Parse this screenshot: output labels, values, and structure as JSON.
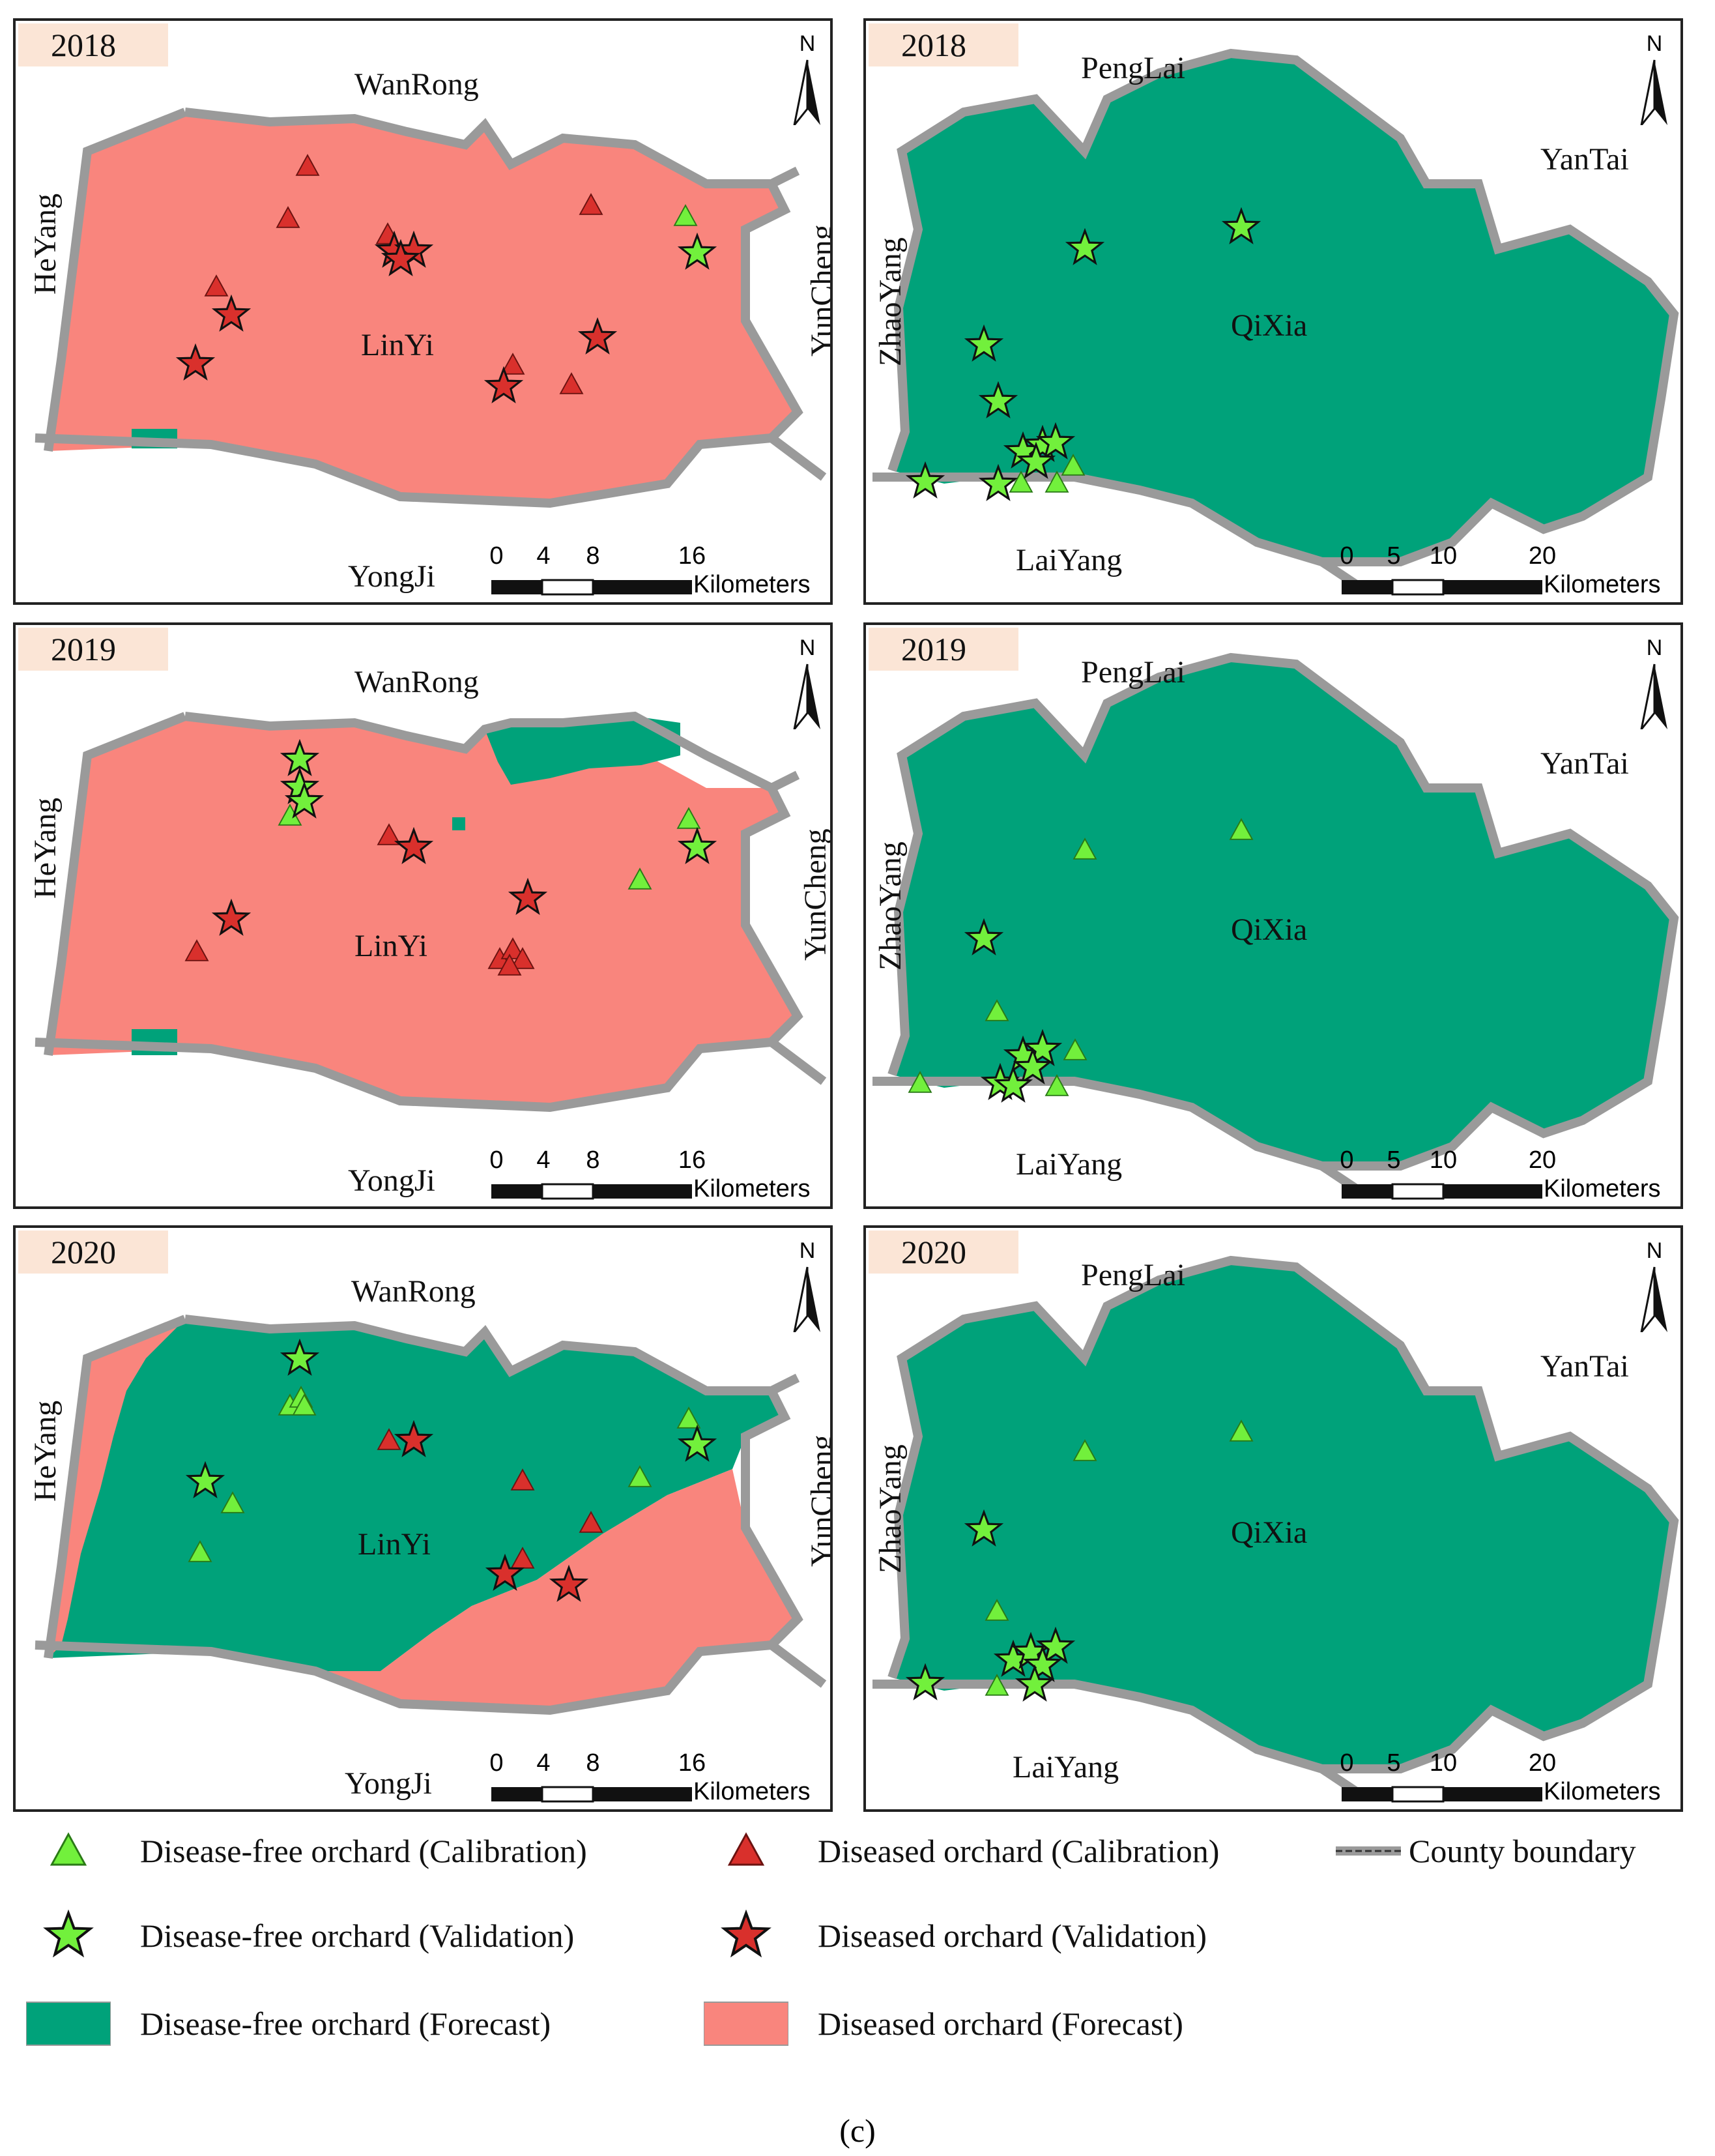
{
  "figure": {
    "caption": "(c)"
  },
  "colors": {
    "forecast_free": "#00a27a",
    "forecast_diseased": "#f9857d",
    "point_free": "#72f03c",
    "point_diseased": "#d9302c",
    "boundary": "#9a9a9a",
    "year_tag_bg": "#fbe5d6"
  },
  "linyi_labels": {
    "county": "LinYi",
    "north": "WanRong",
    "south": "YongJi",
    "west": "HeYang",
    "east": "YunCheng"
  },
  "qixia_labels": {
    "county": "QiXia",
    "north": "PengLai",
    "south": "LaiYang",
    "west": "ZhaoYang",
    "east": "YanTai"
  },
  "scales": {
    "linyi": {
      "ticks": [
        "0",
        "4",
        "8",
        "16"
      ],
      "unit": "Kilometers"
    },
    "qixia": {
      "ticks": [
        "0",
        "5",
        "10",
        "20"
      ],
      "unit": "Kilometers"
    }
  },
  "north_arrow": {
    "letter": "N"
  },
  "panels": [
    {
      "year": "2018",
      "county": "LinYi",
      "forecast": "mostly diseased (pink) with a small disease-free patch in the southwest",
      "points": {
        "free_calibration": 1,
        "free_validation": 1,
        "diseased_calibration": 7,
        "diseased_validation": 7
      }
    },
    {
      "year": "2018",
      "county": "QiXia",
      "forecast": "entirely disease-free (green)",
      "points": {
        "free_calibration": 3,
        "free_validation": 10,
        "diseased_calibration": 0,
        "diseased_validation": 0
      }
    },
    {
      "year": "2019",
      "county": "LinYi",
      "forecast": "mostly diseased with small disease-free patches in the northeast and southwest",
      "points": {
        "free_calibration": 3,
        "free_validation": 4,
        "diseased_calibration": 6,
        "diseased_validation": 3
      }
    },
    {
      "year": "2019",
      "county": "QiXia",
      "forecast": "entirely disease-free (green)",
      "points": {
        "free_calibration": 6,
        "free_validation": 6,
        "diseased_calibration": 0,
        "diseased_validation": 0
      }
    },
    {
      "year": "2020",
      "county": "LinYi",
      "forecast": "disease-free in north and west, diseased band in the southeast and along the west edge",
      "points": {
        "free_calibration": 6,
        "free_validation": 3,
        "diseased_calibration": 5,
        "diseased_validation": 3
      }
    },
    {
      "year": "2020",
      "county": "QiXia",
      "forecast": "entirely disease-free (green)",
      "points": {
        "free_calibration": 4,
        "free_validation": 7,
        "diseased_calibration": 0,
        "diseased_validation": 0
      }
    }
  ],
  "legend": {
    "free_calibration": "Disease-free orchard (Calibration)",
    "diseased_calibration": "Diseased orchard (Calibration)",
    "county_boundary": "County boundary",
    "free_validation": "Disease-free orchard (Validation)",
    "diseased_validation": "Diseased orchard (Validation)",
    "free_forecast": "Disease-free orchard (Forecast)",
    "diseased_forecast": "Diseased orchard (Forecast)"
  }
}
